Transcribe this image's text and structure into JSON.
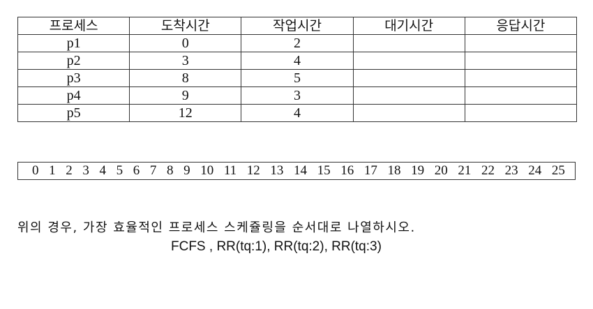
{
  "table": {
    "headers": [
      "프로세스",
      "도착시간",
      "작업시간",
      "대기시간",
      "응답시간"
    ],
    "rows": [
      [
        "p1",
        "0",
        "2",
        "",
        ""
      ],
      [
        "p2",
        "3",
        "4",
        "",
        ""
      ],
      [
        "p3",
        "8",
        "5",
        "",
        ""
      ],
      [
        "p4",
        "9",
        "3",
        "",
        ""
      ],
      [
        "p5",
        "12",
        "4",
        "",
        ""
      ]
    ]
  },
  "timeline": {
    "ticks": [
      "0",
      "1",
      "2",
      "3",
      "4",
      "5",
      "6",
      "7",
      "8",
      "9",
      "10",
      "11",
      "12",
      "13",
      "14",
      "15",
      "16",
      "17",
      "18",
      "19",
      "20",
      "21",
      "22",
      "23",
      "24",
      "25"
    ]
  },
  "question": {
    "text": "위의 경우, 가장 효율적인 프로세스 스케쥴링을 순서대로 나열하시오.",
    "options": "FCFS , RR(tq:1), RR(tq:2), RR(tq:3)"
  }
}
